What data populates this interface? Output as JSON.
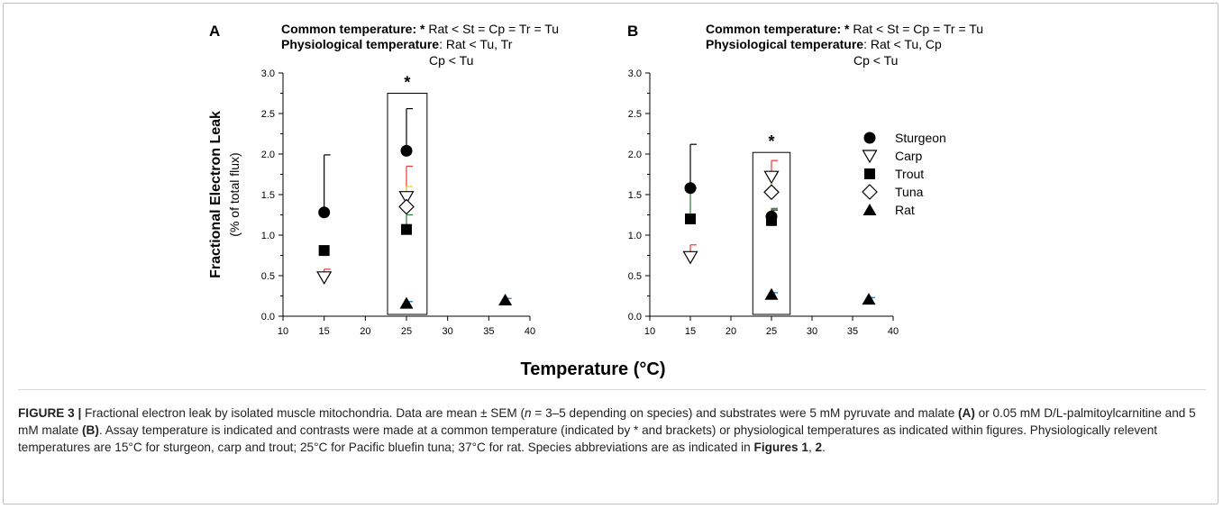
{
  "xaxis_title": "Temperature (°C)",
  "caption": {
    "label": "FIGURE 3 |",
    "text_1": " Fractional electron leak by isolated muscle mitochondria. Data are mean ± SEM (",
    "n_var": "n",
    "text_2": " = 3–5 depending on species) and substrates were 5 mM pyruvate and malate ",
    "ref_a": "(A)",
    "text_3": " or 0.05 mM D/L-palmitoylcarnitine and 5 mM malate ",
    "ref_b": "(B)",
    "text_4": ". Assay temperature is indicated and contrasts were made at a common temperature (indicated by * and brackets) or physiological temperatures as indicated within figures. Physiologically relevent temperatures are 15°C for sturgeon, carp and trout; 25°C for Pacific bluefin tuna; 37°C for rat. Species abbreviations are as indicated in ",
    "ref_figs": "Figures 1",
    "text_5": ", ",
    "ref_fig2": "2",
    "text_6": "."
  },
  "colors": {
    "Sturgeon": "#000000",
    "Carp": "#e53935",
    "Trout": "#2e7d32",
    "Tuna": "#f2d21b",
    "Rat": "#1565c0"
  },
  "chart_data": [
    {
      "type": "scatter",
      "panel": "A",
      "ylabel": "Fractional Electron Leak",
      "ylabel2": "(% of total flux)",
      "xlim": [
        10,
        40
      ],
      "ylim": [
        0,
        3
      ],
      "xticks": [
        10,
        15,
        20,
        25,
        30,
        35,
        40
      ],
      "yticks": [
        "0.0",
        "0.5",
        "1.0",
        "1.5",
        "2.0",
        "2.5",
        "3.0"
      ],
      "annotation_line1_bold": "Common temperature: * ",
      "annotation_line1_rest": "Rat < St = Cp = Tr = Tu",
      "annotation_line2_bold": "Physiological temperature",
      "annotation_line2_rest": ": Rat < Tu, Tr",
      "annotation_line3": "Cp < Tu",
      "star": "*",
      "series": [
        {
          "name": "Sturgeon",
          "marker": "circle",
          "points": [
            {
              "x": 15,
              "y": 1.28,
              "err": 0.71
            },
            {
              "x": 25,
              "y": 2.04,
              "err": 0.52
            }
          ]
        },
        {
          "name": "Carp",
          "marker": "tri-down",
          "points": [
            {
              "x": 15,
              "y": 0.48,
              "err": 0.1
            },
            {
              "x": 25,
              "y": 1.47,
              "err": 0.38
            }
          ]
        },
        {
          "name": "Trout",
          "marker": "square",
          "points": [
            {
              "x": 15,
              "y": 0.81,
              "err": 0
            },
            {
              "x": 25,
              "y": 1.07,
              "err": 0.18
            }
          ]
        },
        {
          "name": "Tuna",
          "marker": "diamond",
          "points": [
            {
              "x": 25,
              "y": 1.35,
              "err": 0.25
            }
          ]
        },
        {
          "name": "Rat",
          "marker": "tri-up",
          "points": [
            {
              "x": 25,
              "y": 0.16,
              "err": 0.02
            },
            {
              "x": 37,
              "y": 0.2,
              "err": 0.02
            }
          ]
        }
      ]
    },
    {
      "type": "scatter",
      "panel": "B",
      "xlim": [
        10,
        40
      ],
      "ylim": [
        0,
        3
      ],
      "xticks": [
        10,
        15,
        20,
        25,
        30,
        35,
        40
      ],
      "yticks": [
        "0.0",
        "0.5",
        "1.0",
        "1.5",
        "2.0",
        "2.5",
        "3.0"
      ],
      "annotation_line1_bold": "Common temperature: * ",
      "annotation_line1_rest": "Rat < St = Cp = Tr = Tu",
      "annotation_line2_bold": "Physiological temperature",
      "annotation_line2_rest": ": Rat < Tu, Cp",
      "annotation_line3": "Cp < Tu",
      "star": "*",
      "legend_position": "right",
      "legend": [
        "Sturgeon",
        "Carp",
        "Trout",
        "Tuna",
        "Rat"
      ],
      "series": [
        {
          "name": "Sturgeon",
          "marker": "circle",
          "points": [
            {
              "x": 15,
              "y": 1.58,
              "err": 0.54
            },
            {
              "x": 25,
              "y": 1.23,
              "err": 0.08
            }
          ]
        },
        {
          "name": "Carp",
          "marker": "tri-down",
          "points": [
            {
              "x": 15,
              "y": 0.73,
              "err": 0.15
            },
            {
              "x": 25,
              "y": 1.72,
              "err": 0.2
            }
          ]
        },
        {
          "name": "Trout",
          "marker": "square",
          "points": [
            {
              "x": 15,
              "y": 1.2,
              "err": 0.38
            },
            {
              "x": 25,
              "y": 1.18,
              "err": 0.15
            }
          ]
        },
        {
          "name": "Tuna",
          "marker": "diamond",
          "points": [
            {
              "x": 25,
              "y": 1.53,
              "err": 0.22
            }
          ]
        },
        {
          "name": "Rat",
          "marker": "tri-up",
          "points": [
            {
              "x": 25,
              "y": 0.27,
              "err": 0.02
            },
            {
              "x": 37,
              "y": 0.21,
              "err": 0.02
            }
          ]
        }
      ]
    }
  ]
}
